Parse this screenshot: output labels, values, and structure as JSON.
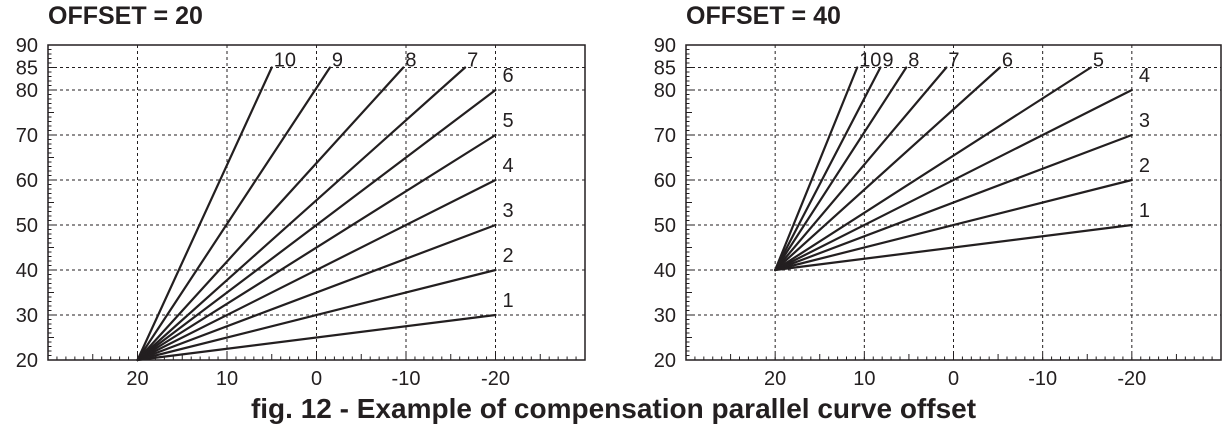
{
  "caption": "fig. 12 - Example of compensation parallel curve offset",
  "colors": {
    "ink": "#231f20",
    "grid": "#231f20",
    "background": "#ffffff"
  },
  "chart_data": [
    {
      "type": "line",
      "title": "OFFSET = 20",
      "xlabel": "",
      "ylabel": "",
      "x_axis_reversed": true,
      "xlim": [
        30,
        -30
      ],
      "ylim": [
        20,
        90
      ],
      "x_ticks": [
        20,
        10,
        0,
        -10,
        -20
      ],
      "x_tick_labels": [
        "20",
        "10",
        "0",
        "-10",
        "-20"
      ],
      "y_ticks": [
        20,
        30,
        40,
        50,
        60,
        70,
        80,
        85,
        90
      ],
      "y_tick_labels": [
        "20",
        "30",
        "40",
        "50",
        "60",
        "70",
        "80",
        "85",
        "90"
      ],
      "grid": "dashed",
      "origin": {
        "x": 20,
        "y": 20
      },
      "series": [
        {
          "name": "1",
          "x": [
            20,
            -20
          ],
          "y": [
            20,
            30
          ]
        },
        {
          "name": "2",
          "x": [
            20,
            -20
          ],
          "y": [
            20,
            40
          ]
        },
        {
          "name": "3",
          "x": [
            20,
            -20
          ],
          "y": [
            20,
            50
          ]
        },
        {
          "name": "4",
          "x": [
            20,
            -20
          ],
          "y": [
            20,
            60
          ]
        },
        {
          "name": "5",
          "x": [
            20,
            -20
          ],
          "y": [
            20,
            70
          ]
        },
        {
          "name": "6",
          "x": [
            20,
            -20
          ],
          "y": [
            20,
            80
          ]
        },
        {
          "name": "7",
          "x": [
            20,
            -16.6
          ],
          "y": [
            20,
            85
          ]
        },
        {
          "name": "8",
          "x": [
            20,
            -9.7
          ],
          "y": [
            20,
            85
          ]
        },
        {
          "name": "9",
          "x": [
            20,
            -1.5
          ],
          "y": [
            20,
            85
          ]
        },
        {
          "name": "10",
          "x": [
            20,
            5
          ],
          "y": [
            20,
            85
          ]
        }
      ]
    },
    {
      "type": "line",
      "title": "OFFSET = 40",
      "xlabel": "",
      "ylabel": "",
      "x_axis_reversed": true,
      "xlim": [
        30,
        -30
      ],
      "ylim": [
        20,
        90
      ],
      "x_ticks": [
        20,
        10,
        0,
        -10,
        -20
      ],
      "x_tick_labels": [
        "20",
        "10",
        "0",
        "-10",
        "-20"
      ],
      "y_ticks": [
        20,
        30,
        40,
        50,
        60,
        70,
        80,
        85,
        90
      ],
      "y_tick_labels": [
        "20",
        "30",
        "40",
        "50",
        "60",
        "70",
        "80",
        "85",
        "90"
      ],
      "grid": "dashed",
      "origin": {
        "x": 20,
        "y": 40
      },
      "series": [
        {
          "name": "1",
          "x": [
            20,
            -20
          ],
          "y": [
            40,
            50
          ]
        },
        {
          "name": "2",
          "x": [
            20,
            -20
          ],
          "y": [
            40,
            60
          ]
        },
        {
          "name": "3",
          "x": [
            20,
            -20
          ],
          "y": [
            40,
            70
          ]
        },
        {
          "name": "4",
          "x": [
            20,
            -20
          ],
          "y": [
            40,
            80
          ]
        },
        {
          "name": "5",
          "x": [
            20,
            -15.4
          ],
          "y": [
            40,
            85
          ]
        },
        {
          "name": "6",
          "x": [
            20,
            -5.2
          ],
          "y": [
            40,
            85
          ]
        },
        {
          "name": "7",
          "x": [
            20,
            0.8
          ],
          "y": [
            40,
            85
          ]
        },
        {
          "name": "8",
          "x": [
            20,
            5.3
          ],
          "y": [
            40,
            85
          ]
        },
        {
          "name": "9",
          "x": [
            20,
            8.2
          ],
          "y": [
            40,
            85
          ]
        },
        {
          "name": "10",
          "x": [
            20,
            10.8
          ],
          "y": [
            40,
            85
          ]
        }
      ]
    }
  ]
}
